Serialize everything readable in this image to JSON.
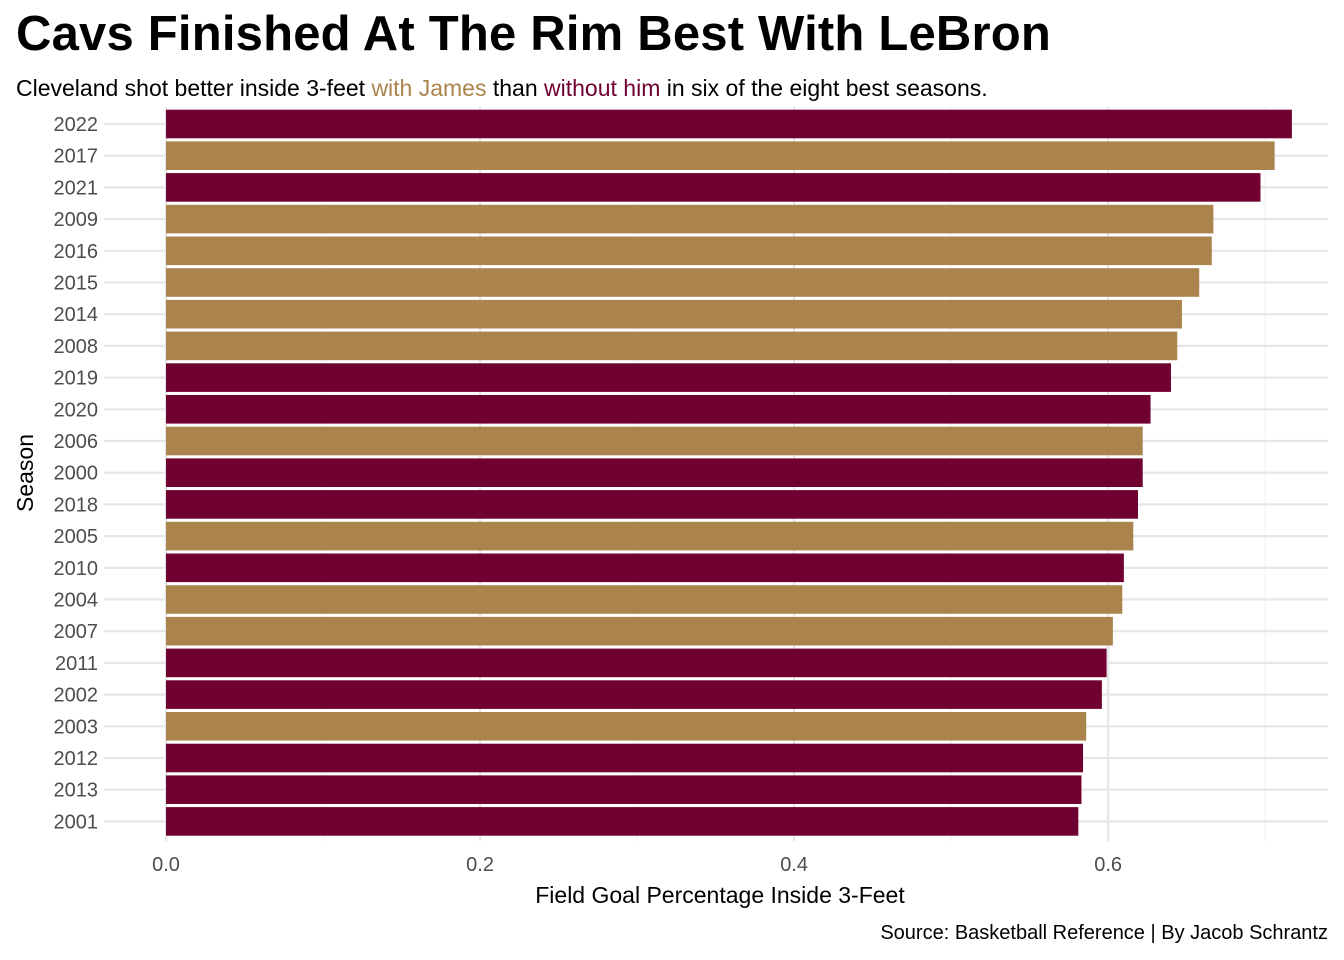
{
  "chart_data": {
    "type": "bar",
    "orientation": "horizontal",
    "title": "Cavs Finished At The Rim Best With LeBron",
    "subtitle": {
      "part1": "Cleveland shot better inside 3-feet ",
      "with_label": "with James",
      "part2": " than ",
      "without_label": "without him",
      "part3": " in six of the eight best seasons."
    },
    "xlabel": "Field Goal Percentage Inside 3-Feet",
    "ylabel": "Season",
    "caption": "Source: Basketball Reference | By Jacob Schrantz",
    "xlim": [
      0,
      0.74
    ],
    "xticks": [
      0.0,
      0.2,
      0.4,
      0.6
    ],
    "xtick_labels": [
      "0.0",
      "0.2",
      "0.4",
      "0.6"
    ],
    "grid": true,
    "legend": "none",
    "colors": {
      "with": "#AB834D",
      "without": "#6F0030"
    },
    "categories": [
      "2022",
      "2017",
      "2021",
      "2009",
      "2016",
      "2015",
      "2014",
      "2008",
      "2019",
      "2020",
      "2006",
      "2000",
      "2018",
      "2005",
      "2010",
      "2004",
      "2007",
      "2011",
      "2002",
      "2003",
      "2012",
      "2013",
      "2001"
    ],
    "values": [
      0.717,
      0.706,
      0.697,
      0.667,
      0.666,
      0.658,
      0.647,
      0.644,
      0.64,
      0.627,
      0.622,
      0.622,
      0.619,
      0.616,
      0.61,
      0.609,
      0.603,
      0.599,
      0.596,
      0.586,
      0.584,
      0.583,
      0.581
    ],
    "group": [
      "without",
      "with",
      "without",
      "with",
      "with",
      "with",
      "with",
      "with",
      "without",
      "without",
      "with",
      "without",
      "without",
      "with",
      "without",
      "with",
      "with",
      "without",
      "without",
      "with",
      "without",
      "without",
      "without"
    ]
  }
}
